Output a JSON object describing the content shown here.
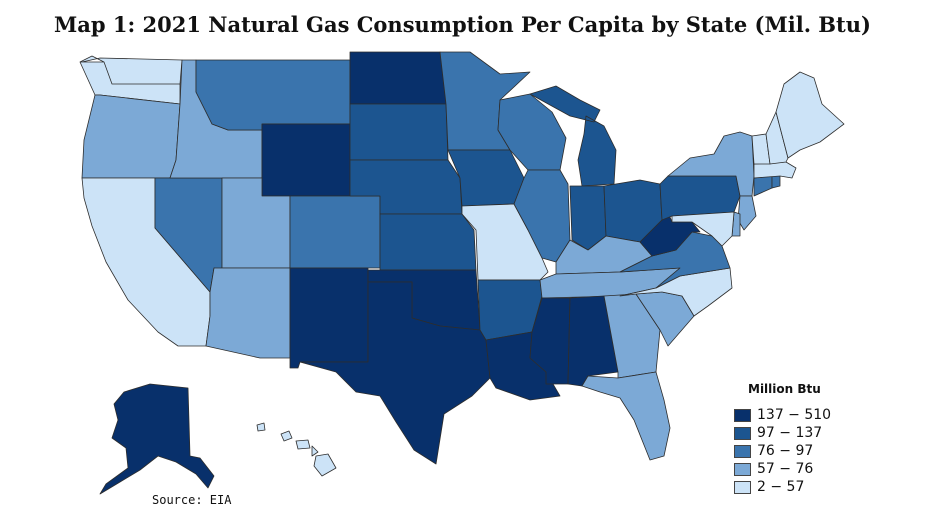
{
  "title": "Map 1: 2021 Natural Gas Consumption Per Capita by State (Mil. Btu)",
  "source": "Source: EIA",
  "legend": {
    "title": "Million Btu",
    "items": [
      {
        "label": "137 − 510",
        "color": "#08306b"
      },
      {
        "label": "97 − 137",
        "color": "#1c5590"
      },
      {
        "label": "76 − 97",
        "color": "#3a74ad"
      },
      {
        "label": "57 − 76",
        "color": "#7ca9d6"
      },
      {
        "label": "2 − 57",
        "color": "#cce3f7"
      }
    ]
  },
  "states": [
    {
      "name": "Washington",
      "bin": "2 − 57"
    },
    {
      "name": "Oregon",
      "bin": "57 − 76"
    },
    {
      "name": "California",
      "bin": "2 − 57"
    },
    {
      "name": "Nevada",
      "bin": "76 − 97"
    },
    {
      "name": "Idaho",
      "bin": "57 − 76"
    },
    {
      "name": "Montana",
      "bin": "76 − 97"
    },
    {
      "name": "Wyoming",
      "bin": "137 − 510"
    },
    {
      "name": "Utah",
      "bin": "57 − 76"
    },
    {
      "name": "Arizona",
      "bin": "57 − 76"
    },
    {
      "name": "Colorado",
      "bin": "76 − 97"
    },
    {
      "name": "New Mexico",
      "bin": "137 − 510"
    },
    {
      "name": "North Dakota",
      "bin": "137 − 510"
    },
    {
      "name": "South Dakota",
      "bin": "97 − 137"
    },
    {
      "name": "Nebraska",
      "bin": "97 − 137"
    },
    {
      "name": "Kansas",
      "bin": "97 − 137"
    },
    {
      "name": "Oklahoma",
      "bin": "137 − 510"
    },
    {
      "name": "Texas",
      "bin": "137 − 510"
    },
    {
      "name": "Minnesota",
      "bin": "76 − 97"
    },
    {
      "name": "Iowa",
      "bin": "97 − 137"
    },
    {
      "name": "Missouri",
      "bin": "2 − 57"
    },
    {
      "name": "Arkansas",
      "bin": "97 − 137"
    },
    {
      "name": "Louisiana",
      "bin": "137 − 510"
    },
    {
      "name": "Wisconsin",
      "bin": "76 − 97"
    },
    {
      "name": "Illinois",
      "bin": "76 − 97"
    },
    {
      "name": "Michigan",
      "bin": "97 − 137"
    },
    {
      "name": "Indiana",
      "bin": "97 − 137"
    },
    {
      "name": "Ohio",
      "bin": "97 − 137"
    },
    {
      "name": "Kentucky",
      "bin": "57 − 76"
    },
    {
      "name": "Tennessee",
      "bin": "57 − 76"
    },
    {
      "name": "Mississippi",
      "bin": "137 − 510"
    },
    {
      "name": "Alabama",
      "bin": "137 − 510"
    },
    {
      "name": "Georgia",
      "bin": "57 − 76"
    },
    {
      "name": "Florida",
      "bin": "57 − 76"
    },
    {
      "name": "South Carolina",
      "bin": "57 − 76"
    },
    {
      "name": "North Carolina",
      "bin": "2 − 57"
    },
    {
      "name": "Virginia",
      "bin": "76 − 97"
    },
    {
      "name": "West Virginia",
      "bin": "137 − 510"
    },
    {
      "name": "Pennsylvania",
      "bin": "97 − 137"
    },
    {
      "name": "New York",
      "bin": "57 − 76"
    },
    {
      "name": "New Jersey",
      "bin": "57 − 76"
    },
    {
      "name": "Delaware",
      "bin": "57 − 76"
    },
    {
      "name": "Maryland",
      "bin": "2 − 57"
    },
    {
      "name": "Connecticut",
      "bin": "76 − 97"
    },
    {
      "name": "Rhode Island",
      "bin": "76 − 97"
    },
    {
      "name": "Massachusetts",
      "bin": "2 − 57"
    },
    {
      "name": "Vermont",
      "bin": "2 − 57"
    },
    {
      "name": "New Hampshire",
      "bin": "2 − 57"
    },
    {
      "name": "Maine",
      "bin": "2 − 57"
    },
    {
      "name": "Alaska",
      "bin": "137 − 510"
    },
    {
      "name": "Hawaii",
      "bin": "2 − 57"
    }
  ]
}
